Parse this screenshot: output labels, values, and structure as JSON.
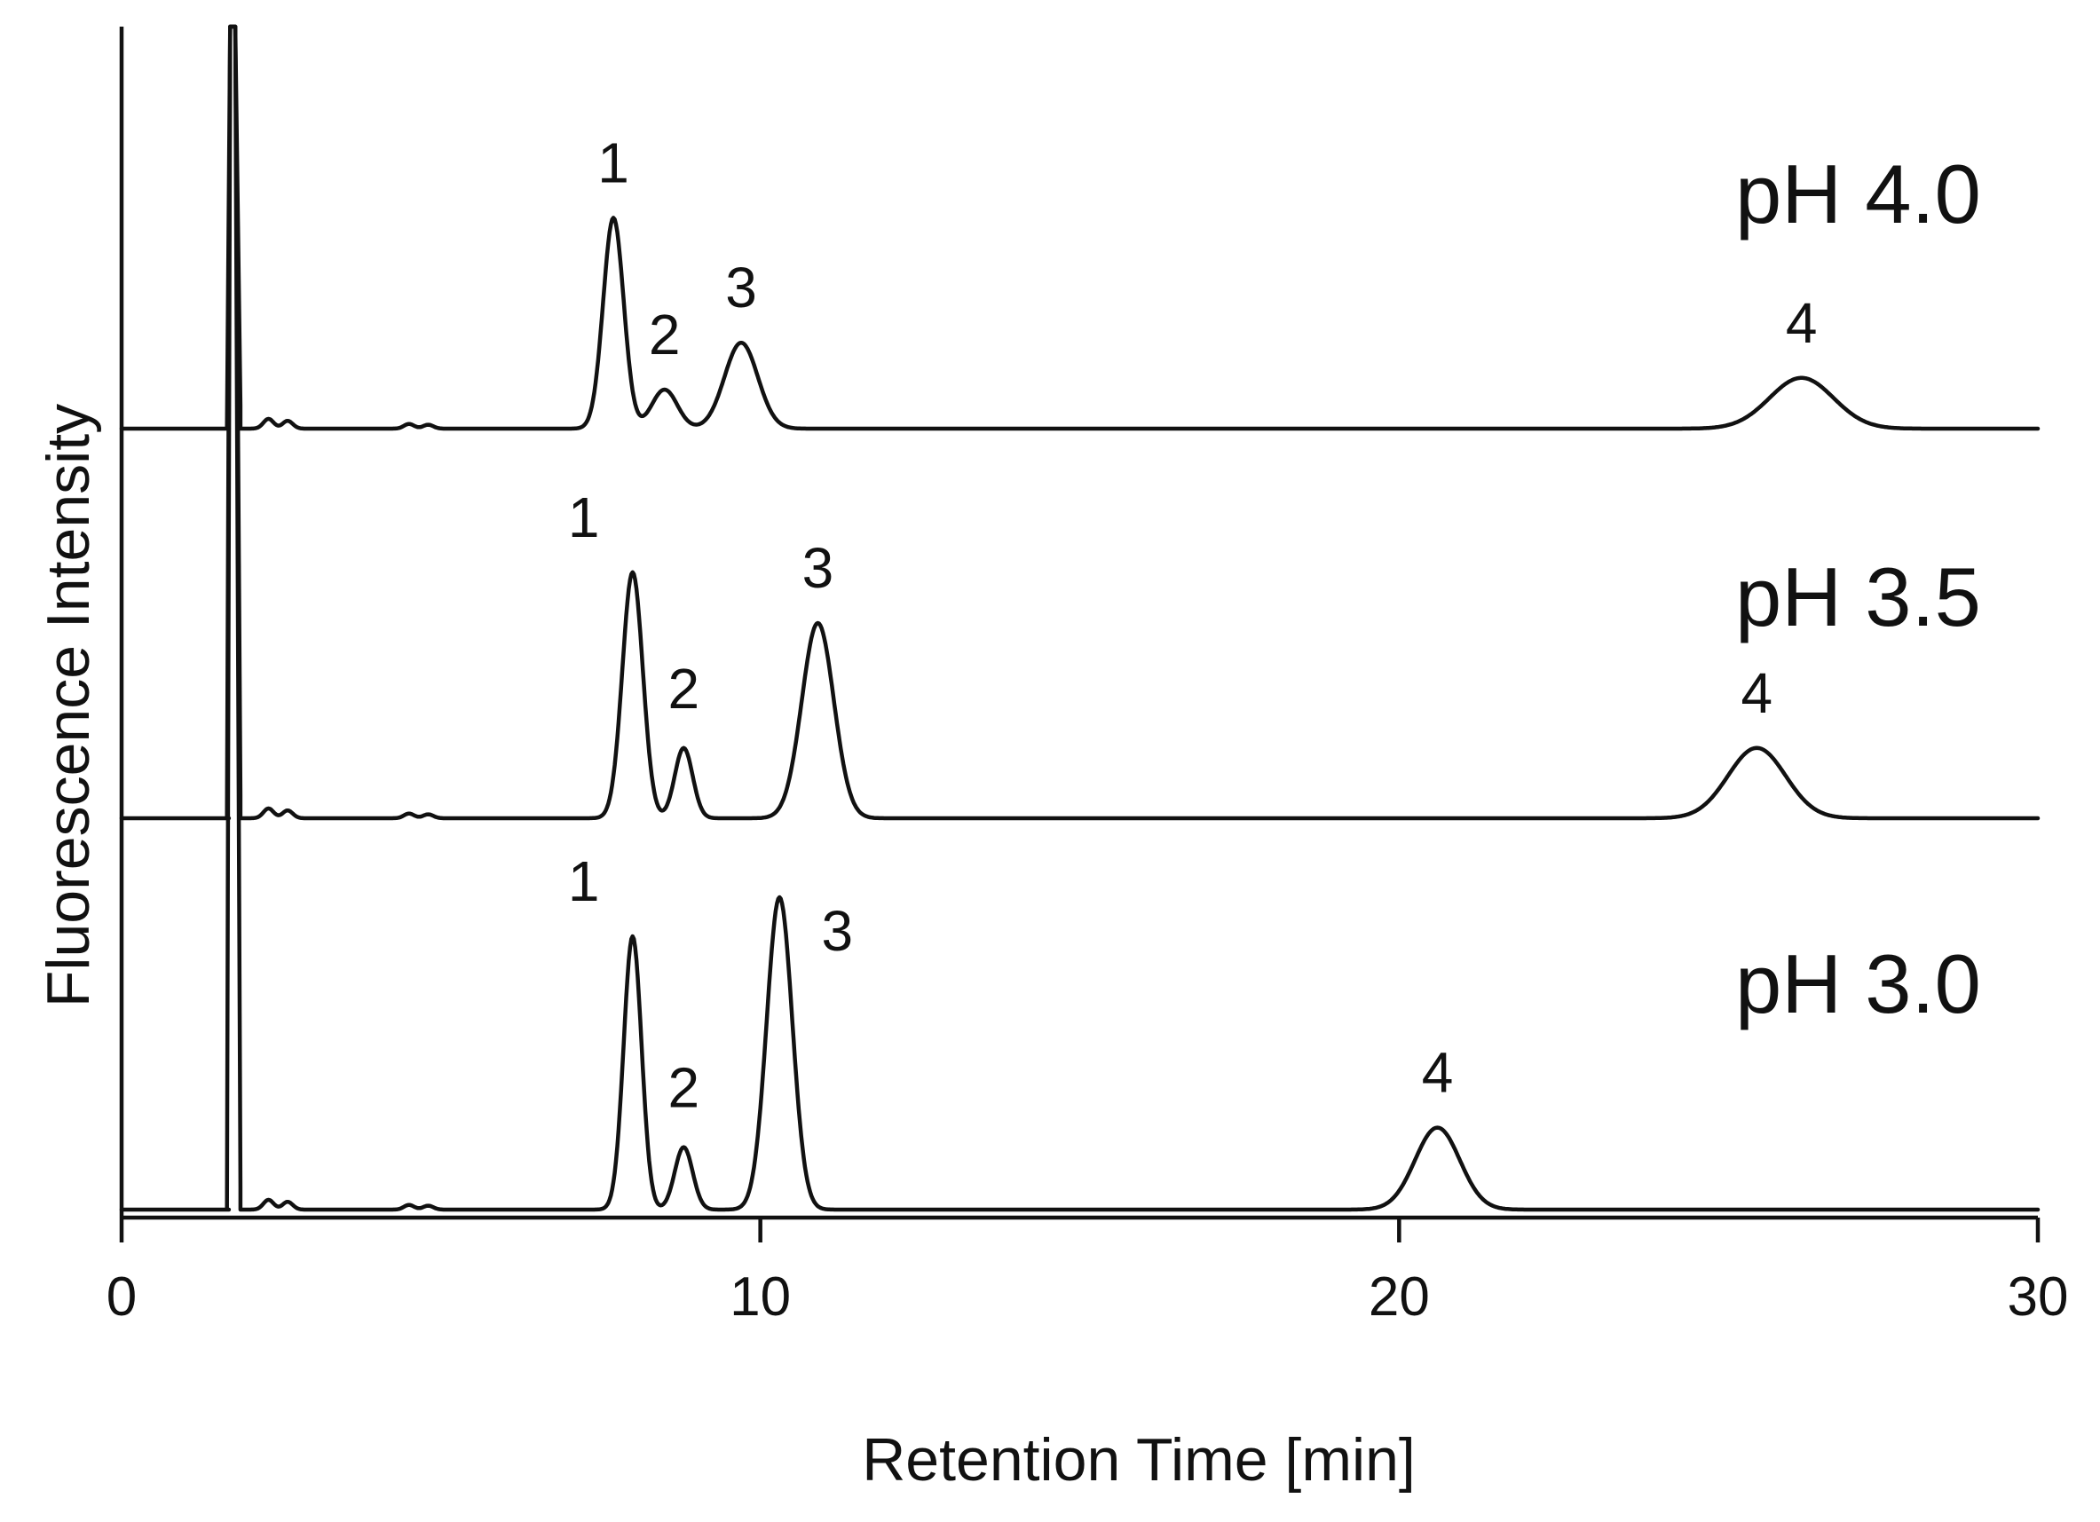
{
  "chart_data": {
    "type": "line",
    "xlabel": "Retention Time [min]",
    "ylabel": "Fluorescence Intensity",
    "xlim": [
      0,
      30
    ],
    "x_ticks": [
      0,
      10,
      20,
      30
    ],
    "grid": false,
    "y_tick_labels": "none",
    "layout": "stacked chromatograms (offset vertically)",
    "series": [
      {
        "name": "pH 4.0",
        "injection_spike_min": 1.7,
        "peaks": [
          {
            "label": "1",
            "x": 7.7,
            "height": 0.54,
            "width": 0.16
          },
          {
            "label": "2",
            "x": 8.5,
            "height": 0.1,
            "width": 0.2
          },
          {
            "label": "3",
            "x": 9.7,
            "height": 0.22,
            "width": 0.26
          },
          {
            "label": "4",
            "x": 26.3,
            "height": 0.13,
            "width": 0.5
          }
        ]
      },
      {
        "name": "pH 3.5",
        "injection_spike_min": 1.7,
        "peaks": [
          {
            "label": "1",
            "x": 8.0,
            "height": 0.63,
            "width": 0.16
          },
          {
            "label": "2",
            "x": 8.8,
            "height": 0.18,
            "width": 0.14
          },
          {
            "label": "3",
            "x": 10.9,
            "height": 0.5,
            "width": 0.25
          },
          {
            "label": "4",
            "x": 25.6,
            "height": 0.18,
            "width": 0.45
          }
        ]
      },
      {
        "name": "pH 3.0",
        "injection_spike_min": 1.7,
        "peaks": [
          {
            "label": "1",
            "x": 8.0,
            "height": 0.7,
            "width": 0.14
          },
          {
            "label": "2",
            "x": 8.8,
            "height": 0.16,
            "width": 0.14
          },
          {
            "label": "3",
            "x": 10.3,
            "height": 0.8,
            "width": 0.2
          },
          {
            "label": "4",
            "x": 20.6,
            "height": 0.21,
            "width": 0.35
          }
        ]
      }
    ]
  }
}
